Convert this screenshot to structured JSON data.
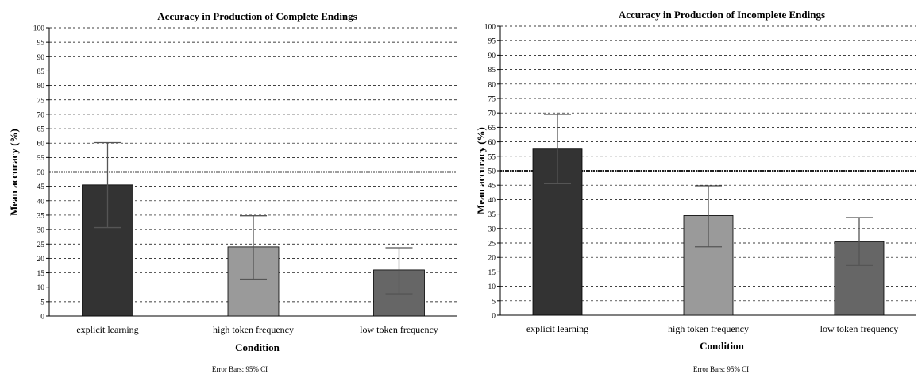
{
  "chart_data": [
    {
      "type": "bar",
      "title": "Accuracy in Production of Complete Endings",
      "xlabel": "Condition",
      "ylabel": "Mean accuracy (%)",
      "ylim": [
        0,
        100
      ],
      "ytick_step": 5,
      "grid": true,
      "reference_line": 50,
      "categories": [
        "explicit learning",
        "high token frequency",
        "low token frequency"
      ],
      "values": [
        45.5,
        24,
        16
      ],
      "error_low": [
        30.7,
        12.8,
        7.7
      ],
      "error_high": [
        60.2,
        34.8,
        23.7
      ],
      "colors": [
        "#333333",
        "#9a9a9a",
        "#666666"
      ],
      "footnote": "Error Bars: 95% CI"
    },
    {
      "type": "bar",
      "title": "Accuracy in Production of Incomplete Endings",
      "xlabel": "Condition",
      "ylabel": "Mean accuracy (%)",
      "ylim": [
        0,
        100
      ],
      "ytick_step": 5,
      "grid": true,
      "reference_line": 50,
      "categories": [
        "explicit learning",
        "high token frequency",
        "low token frequency"
      ],
      "values": [
        57.5,
        34.5,
        25.5
      ],
      "error_low": [
        45.5,
        23.7,
        17.2
      ],
      "error_high": [
        69.5,
        44.8,
        33.8
      ],
      "colors": [
        "#333333",
        "#9a9a9a",
        "#666666"
      ],
      "footnote": "Error Bars: 95% CI"
    }
  ]
}
